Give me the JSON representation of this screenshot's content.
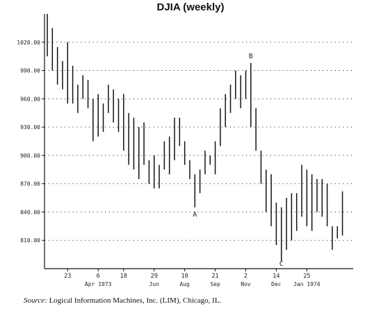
{
  "chart_data": {
    "type": "bar",
    "subtype": "OHLC weekly range bars",
    "title": "DJIA (weekly)",
    "ylim": [
      780,
      1050
    ],
    "y_ticks": [
      "1020.00",
      "990.00",
      "960.00",
      "930.00",
      "900.00",
      "870.00",
      "840.00",
      "810.00"
    ],
    "y_tick_values": [
      1020,
      990,
      960,
      930,
      900,
      870,
      840,
      810
    ],
    "grid": "horizontal dotted",
    "x_ticks": [
      {
        "label": "23",
        "sub": "",
        "week": 4
      },
      {
        "label": "6",
        "sub": "Apr 1973",
        "week": 10
      },
      {
        "label": "18",
        "sub": "",
        "week": 15
      },
      {
        "label": "29",
        "sub": "Jun",
        "week": 21
      },
      {
        "label": "10",
        "sub": "Aug",
        "week": 27
      },
      {
        "label": "21",
        "sub": "Sep",
        "week": 33
      },
      {
        "label": "2",
        "sub": "Nov",
        "week": 39
      },
      {
        "label": "14",
        "sub": "Dec",
        "week": 45
      },
      {
        "label": "25",
        "sub": "Jan 1974",
        "week": 51
      }
    ],
    "weeks": [
      {
        "h": 1050,
        "l": 1005
      },
      {
        "h": 1035,
        "l": 990
      },
      {
        "h": 1015,
        "l": 975
      },
      {
        "h": 1000,
        "l": 970
      },
      {
        "h": 1020,
        "l": 955
      },
      {
        "h": 995,
        "l": 955
      },
      {
        "h": 975,
        "l": 945
      },
      {
        "h": 985,
        "l": 960
      },
      {
        "h": 980,
        "l": 950
      },
      {
        "h": 960,
        "l": 915
      },
      {
        "h": 965,
        "l": 920
      },
      {
        "h": 955,
        "l": 925
      },
      {
        "h": 975,
        "l": 945
      },
      {
        "h": 970,
        "l": 935
      },
      {
        "h": 960,
        "l": 925
      },
      {
        "h": 965,
        "l": 905
      },
      {
        "h": 945,
        "l": 890
      },
      {
        "h": 940,
        "l": 885
      },
      {
        "h": 930,
        "l": 875
      },
      {
        "h": 935,
        "l": 890
      },
      {
        "h": 895,
        "l": 870
      },
      {
        "h": 900,
        "l": 865
      },
      {
        "h": 890,
        "l": 865
      },
      {
        "h": 915,
        "l": 885
      },
      {
        "h": 920,
        "l": 880
      },
      {
        "h": 940,
        "l": 895
      },
      {
        "h": 940,
        "l": 910
      },
      {
        "h": 915,
        "l": 890
      },
      {
        "h": 895,
        "l": 875
      },
      {
        "h": 880,
        "l": 845
      },
      {
        "h": 885,
        "l": 860
      },
      {
        "h": 905,
        "l": 880
      },
      {
        "h": 900,
        "l": 890
      },
      {
        "h": 915,
        "l": 880
      },
      {
        "h": 950,
        "l": 910
      },
      {
        "h": 965,
        "l": 930
      },
      {
        "h": 975,
        "l": 945
      },
      {
        "h": 990,
        "l": 960
      },
      {
        "h": 985,
        "l": 950
      },
      {
        "h": 990,
        "l": 960
      },
      {
        "h": 998,
        "l": 930
      },
      {
        "h": 950,
        "l": 905
      },
      {
        "h": 905,
        "l": 870
      },
      {
        "h": 885,
        "l": 840
      },
      {
        "h": 880,
        "l": 825
      },
      {
        "h": 850,
        "l": 805
      },
      {
        "h": 845,
        "l": 788
      },
      {
        "h": 855,
        "l": 800
      },
      {
        "h": 860,
        "l": 810
      },
      {
        "h": 860,
        "l": 820
      },
      {
        "h": 890,
        "l": 835
      },
      {
        "h": 885,
        "l": 825
      },
      {
        "h": 880,
        "l": 820
      },
      {
        "h": 875,
        "l": 840
      },
      {
        "h": 875,
        "l": 835
      },
      {
        "h": 870,
        "l": 825
      },
      {
        "h": 825,
        "l": 800
      },
      {
        "h": 825,
        "l": 812
      },
      {
        "h": 862,
        "l": 815
      }
    ],
    "annotations": [
      {
        "text": "A",
        "week": 29,
        "value": 835
      },
      {
        "text": "B",
        "week": 40,
        "value": 1003
      },
      {
        "text": "C",
        "week": 46,
        "value": 783
      }
    ]
  },
  "source": {
    "label": "Source:",
    "text": "Logical Information Machines, Inc. (LIM), Chicago, IL."
  }
}
